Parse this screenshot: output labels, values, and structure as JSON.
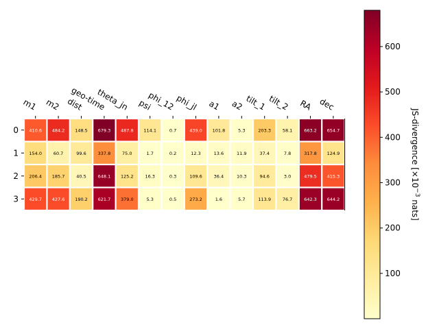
{
  "chart_data": {
    "type": "heatmap",
    "rows": [
      "0",
      "1",
      "2",
      "3"
    ],
    "columns": [
      "m1",
      "m2",
      "dist",
      "geo-time",
      "theta_jn",
      "psi",
      "phi_12",
      "phi_jl",
      "a1",
      "a2",
      "tilt_1",
      "tilt_2",
      "RA",
      "dec"
    ],
    "values": [
      [
        410.6,
        484.2,
        148.5,
        679.3,
        487.8,
        114.1,
        0.7,
        439.0,
        101.8,
        5.3,
        203.3,
        58.1,
        663.2,
        654.7
      ],
      [
        154.0,
        60.7,
        99.6,
        337.8,
        75.0,
        1.7,
        0.2,
        12.3,
        13.6,
        11.9,
        37.4,
        7.8,
        317.8,
        124.9
      ],
      [
        206.4,
        185.7,
        40.5,
        648.1,
        125.2,
        16.3,
        0.3,
        109.6,
        36.4,
        10.3,
        94.6,
        3.0,
        479.5,
        415.3
      ],
      [
        429.7,
        427.6,
        190.2,
        621.7,
        379.0,
        5.3,
        0.5,
        273.2,
        1.6,
        5.7,
        113.9,
        76.7,
        642.3,
        644.2
      ]
    ],
    "colorbar": {
      "label_main": "JS-divergence [×10",
      "label_exp": "−3",
      "label_end": " nats]",
      "ticks": [
        100,
        200,
        300,
        400,
        500,
        600
      ],
      "range": [
        0,
        680
      ],
      "colormap": "YlOrRd"
    }
  }
}
